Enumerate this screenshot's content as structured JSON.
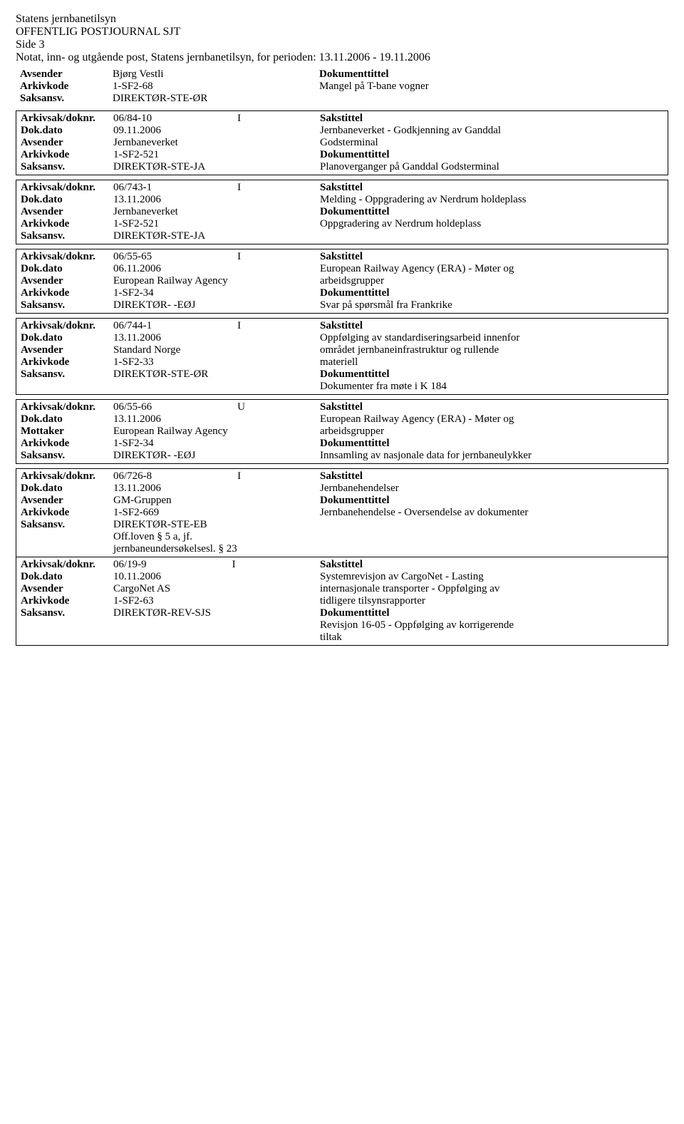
{
  "header": {
    "org": "Statens jernbanetilsyn",
    "title": "OFFENTLIG POSTJOURNAL SJT",
    "page": "Side 3",
    "period": "Notat, inn- og utgående post, Statens jernbanetilsyn, for perioden: 13.11.2006 - 19.11.2006"
  },
  "labels": {
    "avsender": "Avsender",
    "mottaker": "Mottaker",
    "arkivkode": "Arkivkode",
    "saksansv": "Saksansv.",
    "arkivsak": "Arkivsak/doknr.",
    "dokdato": "Dok.dato",
    "dokumenttittel": "Dokumenttittel",
    "sakstittel": "Sakstittel"
  },
  "pre": {
    "avsender": "Bjørg Vestli",
    "arkivkode": "1-SF2-68",
    "saksansv": "DIREKTØR-STE-ØR",
    "dokumenttittel": "Mangel på T-bane vogner"
  },
  "entries": [
    {
      "arkivsak": "06/84-10",
      "io": "I",
      "dokdato": "09.11.2006",
      "partLabel": "Avsender",
      "part": "Jernbaneverket",
      "arkivkode": "1-SF2-521",
      "saksansv": "DIREKTØR-STE-JA",
      "sakstittel": [
        "Jernbaneverket - Godkjenning av Ganddal",
        "Godsterminal"
      ],
      "doktittel": [
        "Planoverganger på Ganddal Godsterminal"
      ]
    },
    {
      "arkivsak": "06/743-1",
      "io": "I",
      "dokdato": "13.11.2006",
      "partLabel": "Avsender",
      "part": "Jernbaneverket",
      "arkivkode": "1-SF2-521",
      "saksansv": "DIREKTØR-STE-JA",
      "sakstittel": [
        "Melding - Oppgradering av Nerdrum holdeplass"
      ],
      "doktittel": [
        "Oppgradering av Nerdrum holdeplass"
      ]
    },
    {
      "arkivsak": "06/55-65",
      "io": "I",
      "dokdato": "06.11.2006",
      "partLabel": "Avsender",
      "part": "European Railway Agency",
      "arkivkode": "1-SF2-34",
      "saksansv": "DIREKTØR- -EØJ",
      "sakstittel": [
        "European Railway Agency (ERA) - Møter og",
        "arbeidsgrupper"
      ],
      "doktittel": [
        "Svar på spørsmål fra Frankrike"
      ]
    },
    {
      "arkivsak": "06/744-1",
      "io": "I",
      "dokdato": "13.11.2006",
      "partLabel": "Avsender",
      "part": "Standard Norge",
      "arkivkode": "1-SF2-33",
      "saksansv": "DIREKTØR-STE-ØR",
      "sakstittel": [
        "Oppfølging av standardiseringsarbeid innenfor",
        "området jernbaneinfrastruktur og rullende",
        "materiell"
      ],
      "doktittel": [
        "Dokumenter fra møte i K 184"
      ]
    },
    {
      "arkivsak": "06/55-66",
      "io": "U",
      "dokdato": "13.11.2006",
      "partLabel": "Mottaker",
      "part": "European Railway Agency",
      "arkivkode": "1-SF2-34",
      "saksansv": "DIREKTØR- -EØJ",
      "sakstittel": [
        "European Railway Agency (ERA) - Møter og",
        "arbeidsgrupper"
      ],
      "doktittel": [
        "Innsamling av nasjonale data for jernbaneulykker"
      ]
    },
    {
      "arkivsak": "06/726-8",
      "io": "I",
      "dokdato": "13.11.2006",
      "partLabel": "Avsender",
      "part": "GM-Gruppen",
      "arkivkode": "1-SF2-669",
      "saksansv": "DIREKTØR-STE-EB",
      "extra": [
        "Off.loven § 5 a, jf.",
        "jernbaneundersøkelsesl. § 23"
      ],
      "sakstittel": [
        "Jernbanehendelser"
      ],
      "doktittel": [
        "Jernbanehendelse - Oversendelse av dokumenter"
      ]
    },
    {
      "noTopBorder": true,
      "arkivsak": "06/19-9",
      "io": "I",
      "dokdato": "10.11.2006",
      "partLabel": "Avsender",
      "part": "CargoNet AS",
      "arkivkode": "1-SF2-63",
      "saksansv": "DIREKTØR-REV-SJS",
      "sakstittel": [
        "Systemrevisjon av CargoNet - Lasting",
        "internasjonale transporter - Oppfølging av",
        "tidligere tilsynsrapporter"
      ],
      "doktittel": [
        "Revisjon 16-05 - Oppfølging av korrigerende",
        "tiltak"
      ]
    }
  ]
}
